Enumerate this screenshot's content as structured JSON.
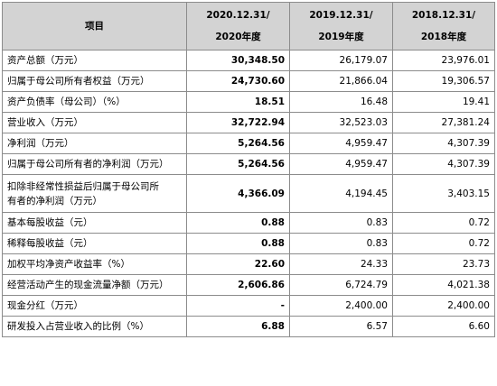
{
  "table": {
    "header": {
      "item": "项目",
      "col1_line1": "2020.12.31/",
      "col1_line2": "2020年度",
      "col2_line1": "2019.12.31/",
      "col2_line2": "2019年度",
      "col3_line1": "2018.12.31/",
      "col3_line2": "2018年度"
    },
    "rows": [
      {
        "label": "资产总额（万元）",
        "v2020": "30,348.50",
        "v2019": "26,179.07",
        "v2018": "23,976.01"
      },
      {
        "label": "归属于母公司所有者权益（万元）",
        "v2020": "24,730.60",
        "v2019": "21,866.04",
        "v2018": "19,306.57"
      },
      {
        "label": "资产负债率（母公司）（%）",
        "v2020": "18.51",
        "v2019": "16.48",
        "v2018": "19.41"
      },
      {
        "label": "营业收入（万元）",
        "v2020": "32,722.94",
        "v2019": "32,523.03",
        "v2018": "27,381.24"
      },
      {
        "label": "净利润（万元）",
        "v2020": "5,264.56",
        "v2019": "4,959.47",
        "v2018": "4,307.39"
      },
      {
        "label": "归属于母公司所有者的净利润（万元）",
        "v2020": "5,264.56",
        "v2019": "4,959.47",
        "v2018": "4,307.39"
      },
      {
        "label_line1": "扣除非经常性损益后归属于母公司所",
        "label_line2": "有者的净利润（万元）",
        "v2020": "4,366.09",
        "v2019": "4,194.45",
        "v2018": "3,403.15"
      },
      {
        "label": "基本每股收益（元）",
        "v2020": "0.88",
        "v2019": "0.83",
        "v2018": "0.72"
      },
      {
        "label": "稀释每股收益（元）",
        "v2020": "0.88",
        "v2019": "0.83",
        "v2018": "0.72"
      },
      {
        "label": "加权平均净资产收益率（%）",
        "v2020": "22.60",
        "v2019": "24.33",
        "v2018": "23.73"
      },
      {
        "label": "经营活动产生的现金流量净额（万元）",
        "v2020": "2,606.86",
        "v2019": "6,724.79",
        "v2018": "4,021.38"
      },
      {
        "label": "现金分红（万元）",
        "v2020": "-",
        "v2019": "2,400.00",
        "v2018": "2,400.00"
      },
      {
        "label": "研发投入占营业收入的比例（%）",
        "v2020": "6.88",
        "v2019": "6.57",
        "v2018": "6.60"
      }
    ]
  }
}
